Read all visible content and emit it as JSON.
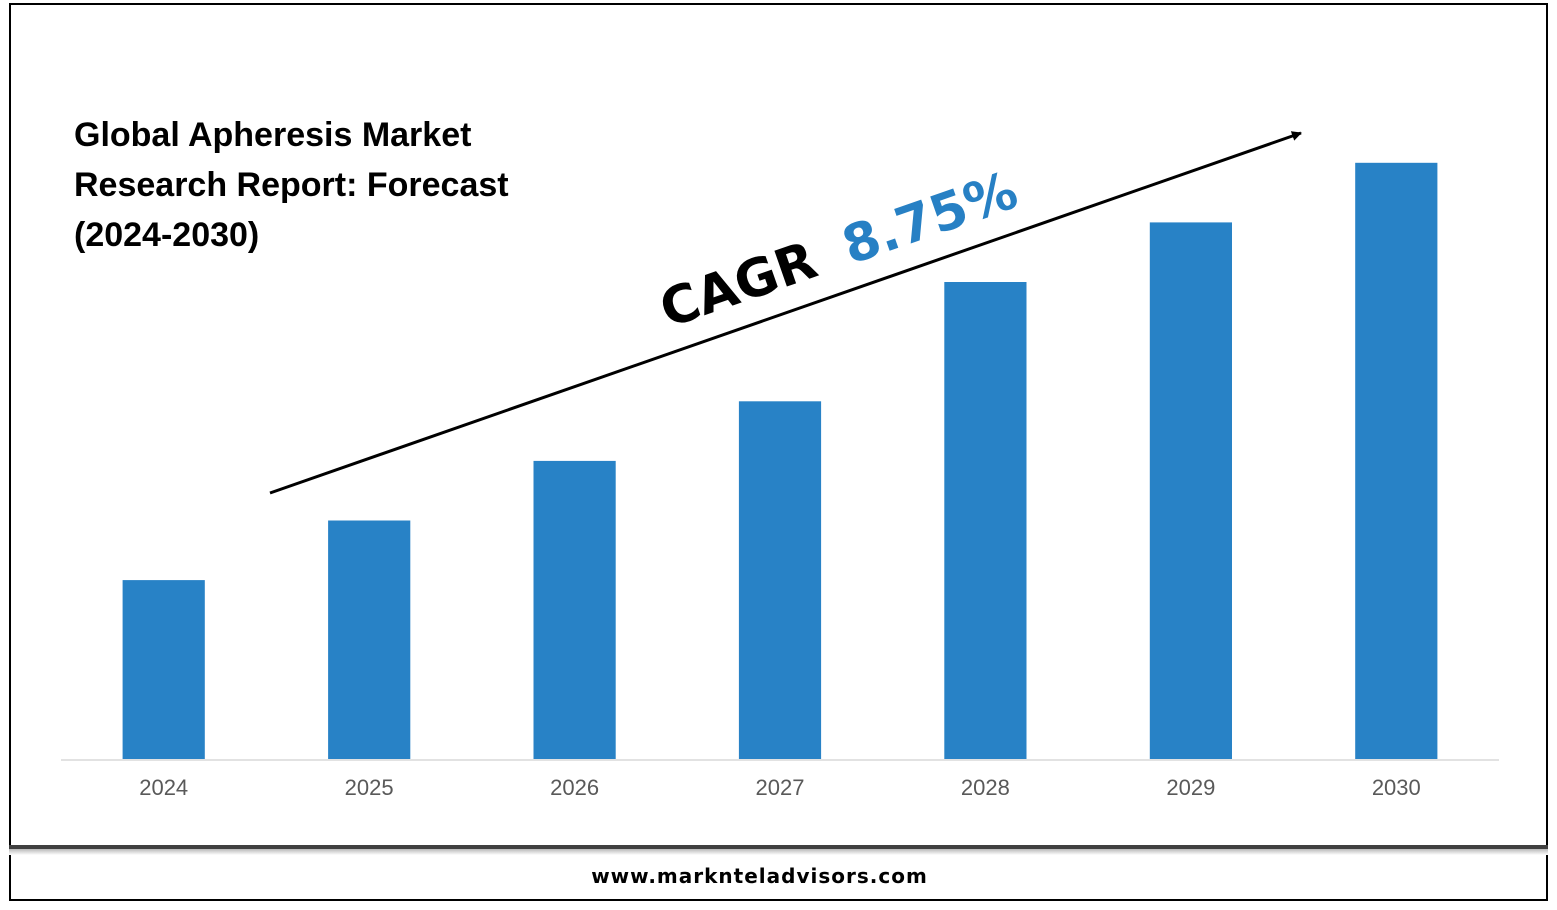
{
  "title_lines": [
    "Global Apheresis Market",
    "Research Report: Forecast",
    "(2024-2030)"
  ],
  "annotation": {
    "label": "CAGR",
    "value": "8.75%",
    "value_color": "#2780c4",
    "label_color": "#000000"
  },
  "footer": {
    "website": "www.marknteladvisors.com"
  },
  "colors": {
    "bar": "#2882c6",
    "axis": "#d9d9d9",
    "tick_label": "#595959",
    "frame": "#000000"
  },
  "chart_data": {
    "type": "bar",
    "categories": [
      "2024",
      "2025",
      "2026",
      "2027",
      "2028",
      "2029",
      "2030"
    ],
    "values": [
      3.0,
      4.0,
      5.0,
      6.0,
      8.0,
      9.0,
      10.0
    ],
    "ylim": [
      0,
      10.5
    ],
    "title": "Global Apheresis Market Research Report: Forecast (2024-2030)",
    "xlabel": "",
    "ylabel": "",
    "grid": false,
    "legend": "none",
    "y_axis_visible": false
  }
}
